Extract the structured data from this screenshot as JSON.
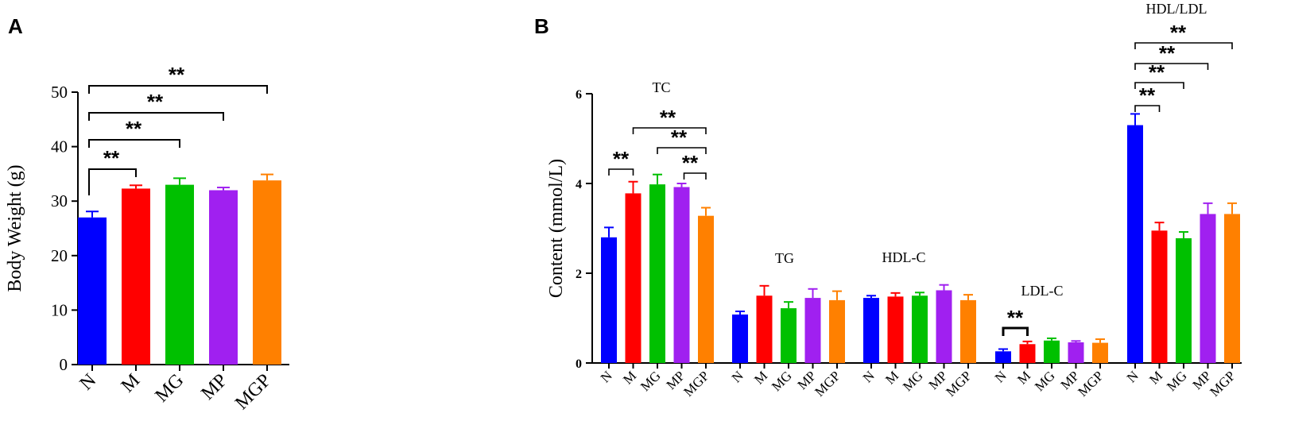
{
  "colors": {
    "N": "#0000ff",
    "M": "#ff0000",
    "MG": "#00c000",
    "MP": "#a020f0",
    "MGP": "#ff8000"
  },
  "chart_data": [
    {
      "panel": "A",
      "type": "bar",
      "title": "",
      "xlabel": "",
      "ylabel": "Body Weight (g)",
      "ylim": [
        0,
        50
      ],
      "yticks": [
        0,
        10,
        20,
        30,
        40,
        50
      ],
      "categories": [
        "N",
        "M",
        "MG",
        "MP",
        "MGP"
      ],
      "values": [
        27.0,
        32.3,
        33.0,
        32.0,
        33.8
      ],
      "errors": [
        1.1,
        0.6,
        1.2,
        0.5,
        1.1
      ],
      "significance": [
        {
          "from": 0,
          "to": 1,
          "label": "**"
        },
        {
          "from": 0,
          "to": 2,
          "label": "**"
        },
        {
          "from": 0,
          "to": 3,
          "label": "**"
        },
        {
          "from": 0,
          "to": 4,
          "label": "**"
        }
      ]
    },
    {
      "panel": "B",
      "type": "bar",
      "title": "",
      "xlabel": "",
      "ylabel": "Content (mmol/L)",
      "ylim": [
        0,
        6
      ],
      "yticks": [
        0,
        2,
        4,
        6
      ],
      "categories": [
        "N",
        "M",
        "MG",
        "MP",
        "MGP"
      ],
      "groups": [
        {
          "name": "TC",
          "values": [
            2.8,
            3.78,
            3.98,
            3.92,
            3.28
          ],
          "errors": [
            0.22,
            0.26,
            0.22,
            0.08,
            0.18
          ],
          "significance": [
            {
              "from": 0,
              "to": 1,
              "label": "**"
            },
            {
              "from": 1,
              "to": 4,
              "label": "**"
            },
            {
              "from": 2,
              "to": 4,
              "label": "**"
            },
            {
              "from": 3,
              "to": 4,
              "label": "**"
            }
          ]
        },
        {
          "name": "TG",
          "values": [
            1.08,
            1.5,
            1.22,
            1.45,
            1.4
          ],
          "errors": [
            0.07,
            0.22,
            0.14,
            0.2,
            0.2
          ],
          "significance": []
        },
        {
          "name": "HDL-C",
          "values": [
            1.45,
            1.48,
            1.5,
            1.62,
            1.4
          ],
          "errors": [
            0.05,
            0.08,
            0.07,
            0.12,
            0.12
          ],
          "significance": []
        },
        {
          "name": "LDL-C",
          "values": [
            0.26,
            0.42,
            0.5,
            0.46,
            0.45
          ],
          "errors": [
            0.05,
            0.06,
            0.05,
            0.03,
            0.08
          ],
          "significance": [
            {
              "from": 0,
              "to": 1,
              "label": "**"
            }
          ]
        },
        {
          "name": "HDL/LDL",
          "values": [
            5.3,
            2.95,
            2.78,
            3.32,
            3.32
          ],
          "errors": [
            0.25,
            0.18,
            0.14,
            0.24,
            0.24
          ],
          "significance": [
            {
              "from": 0,
              "to": 1,
              "label": "**"
            },
            {
              "from": 0,
              "to": 2,
              "label": "**"
            },
            {
              "from": 0,
              "to": 3,
              "label": "**"
            },
            {
              "from": 0,
              "to": 4,
              "label": "**"
            }
          ]
        }
      ]
    }
  ]
}
